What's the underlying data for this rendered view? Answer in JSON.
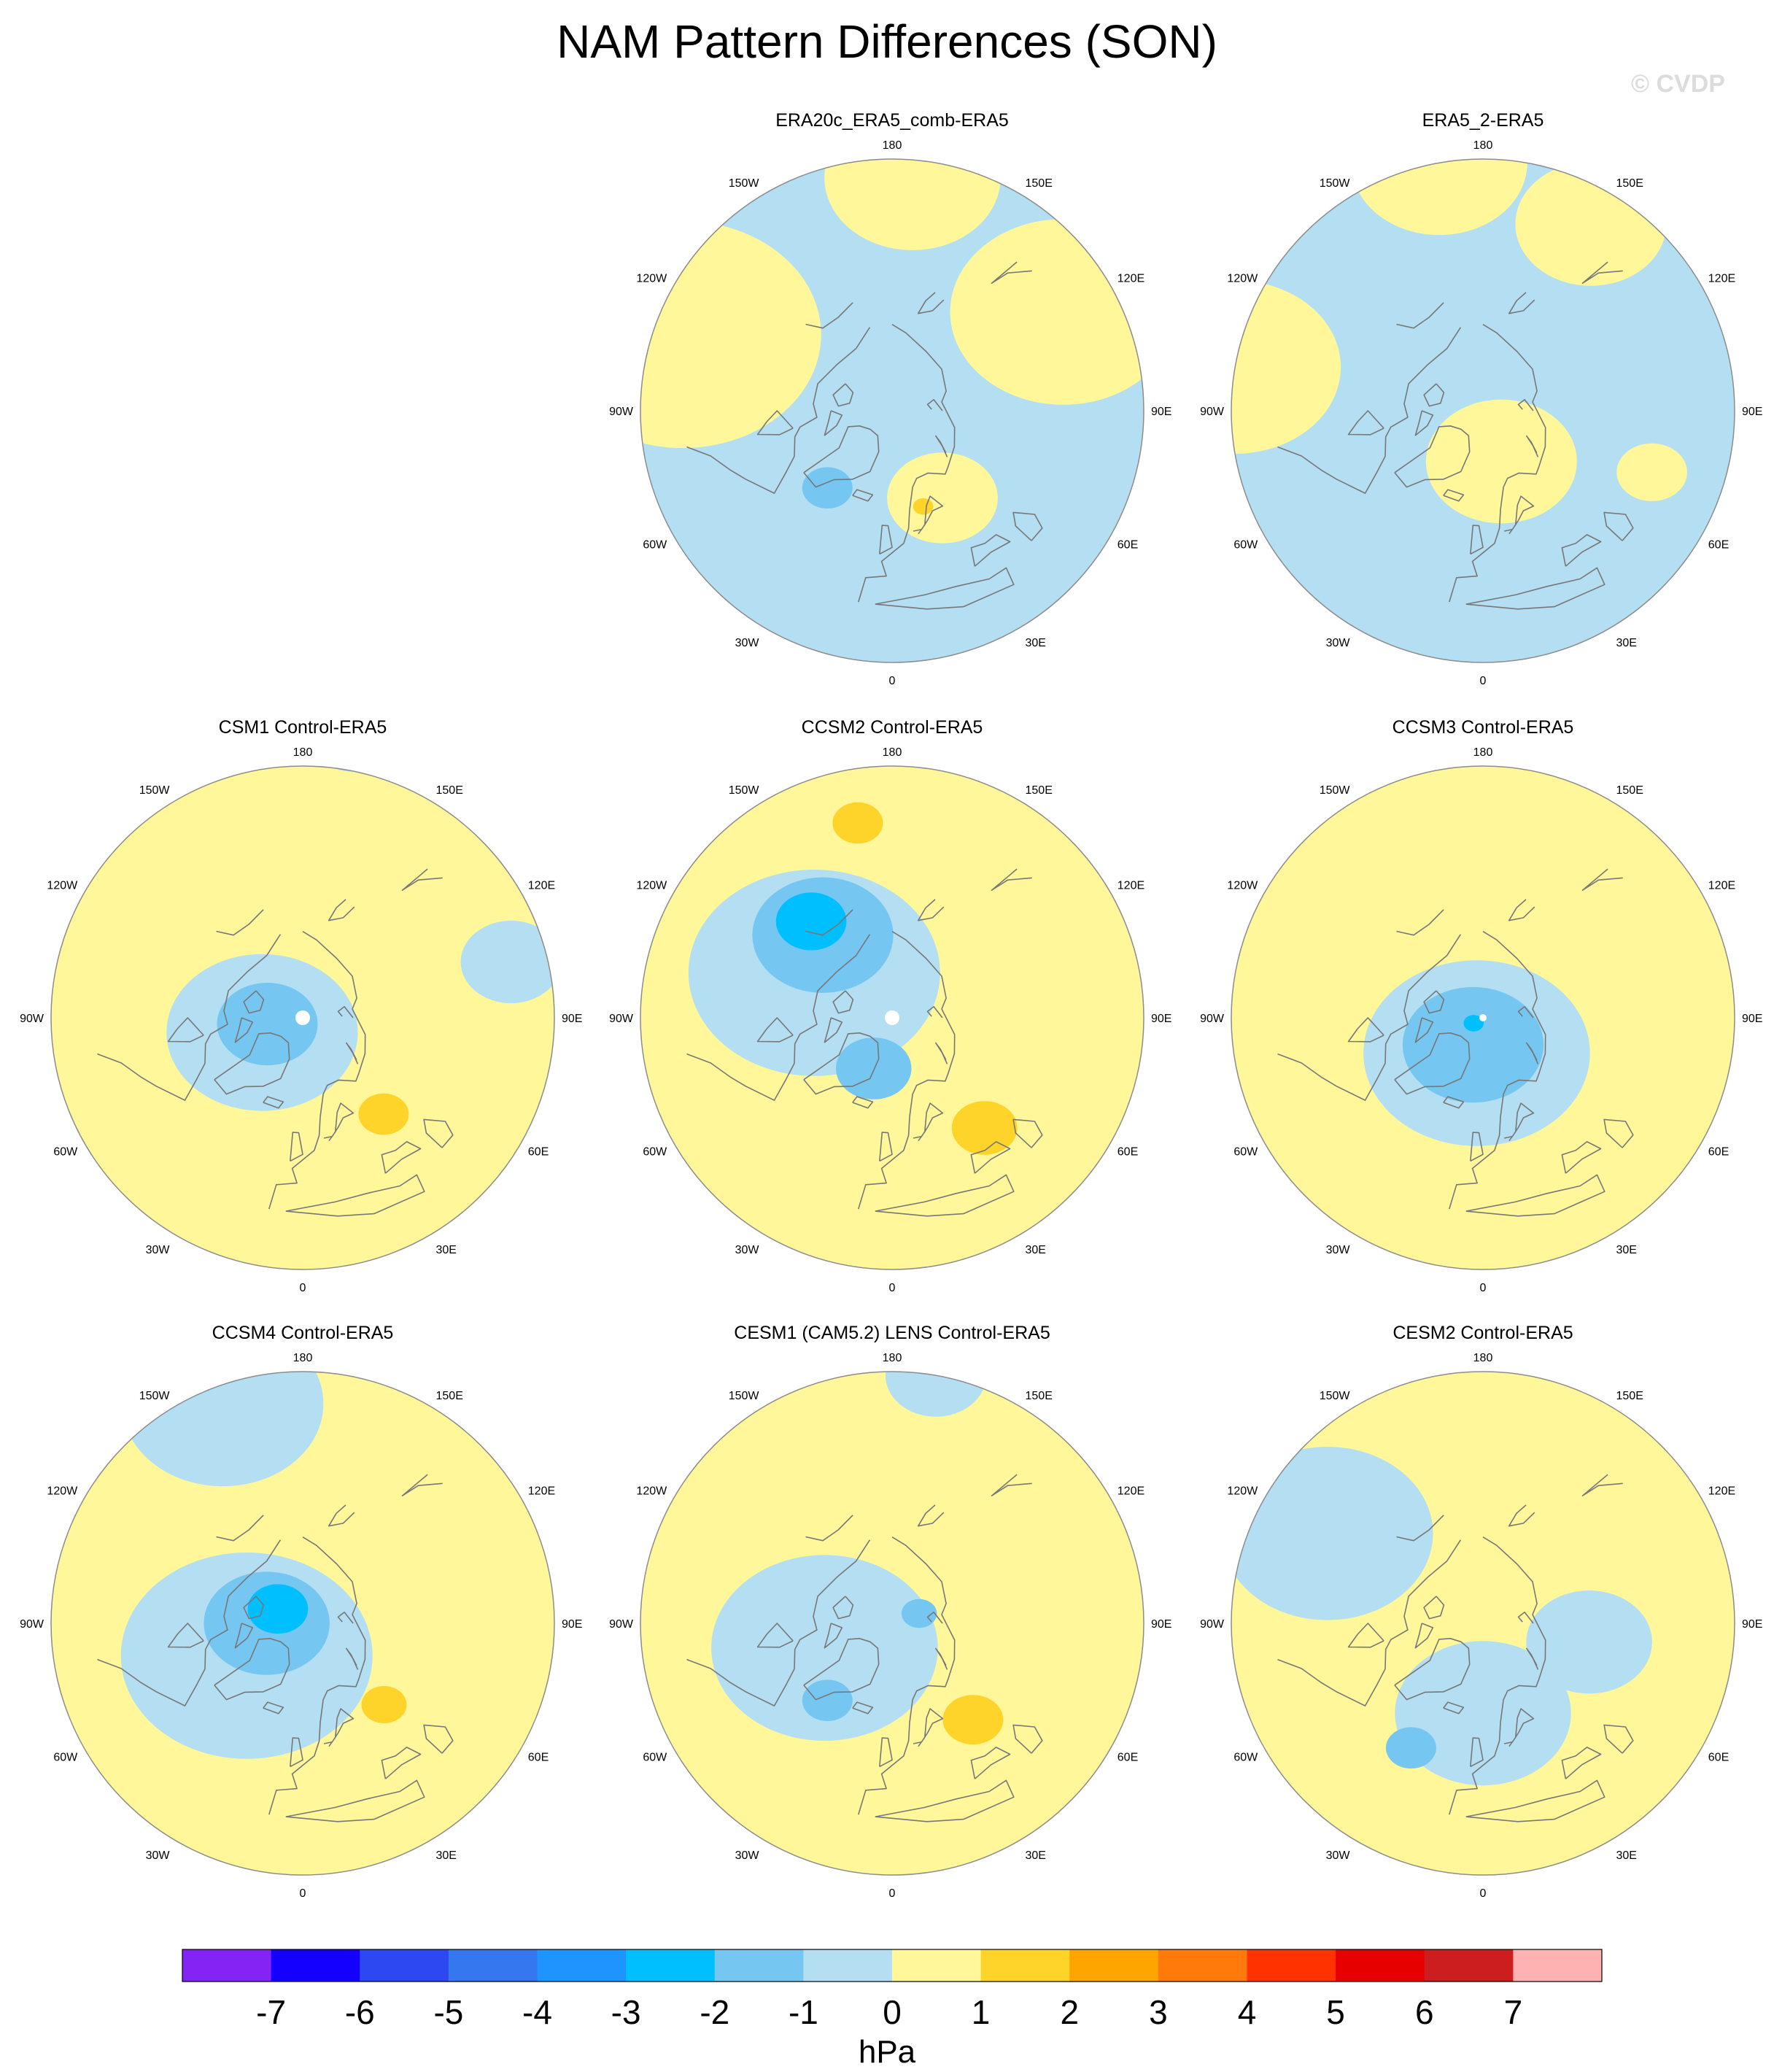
{
  "title": "NAM Pattern Differences (SON)",
  "watermark": "© CVDP",
  "colors": {
    "ocean_land_neutral": "#fff79a",
    "neg1": "#b4def2",
    "neg2": "#75c7f1",
    "neg3": "#00bfff",
    "pos1": "#ffd42a",
    "coast": "#777777",
    "missing": "#ffffff"
  },
  "map_labels": {
    "top": "180",
    "bottom": "0",
    "left": "90W",
    "right": "90E",
    "upper_left": "150W",
    "upper_right": "150E",
    "mid_upper_left": "120W",
    "mid_upper_right": "120E",
    "mid_lower_left": "60W",
    "mid_lower_right": "60E",
    "lower_left": "30W",
    "lower_right": "30E"
  },
  "panels": [
    {
      "title": "ERA20c_ERA5_comb-ERA5",
      "background": "neg1",
      "blobs": [
        {
          "level": "zero",
          "lon": -110,
          "lat": 28,
          "r": 0.55
        },
        {
          "level": "zero",
          "lon": 120,
          "lat": 35,
          "r": 0.45
        },
        {
          "level": "zero",
          "lon": 30,
          "lat": 62,
          "r": 0.22
        },
        {
          "level": "zero",
          "lon": 175,
          "lat": 25,
          "r": 0.35
        },
        {
          "level": "neg2",
          "lon": -40,
          "lat": 62,
          "r": 0.1
        },
        {
          "level": "pos1",
          "lon": 18,
          "lat": 62,
          "r": 0.04
        }
      ]
    },
    {
      "title": "ERA5_2-ERA5",
      "background": "neg1",
      "blobs": [
        {
          "level": "zero",
          "lon": -170,
          "lat": 20,
          "r": 0.35
        },
        {
          "level": "zero",
          "lon": -100,
          "lat": 20,
          "r": 0.42
        },
        {
          "level": "zero",
          "lon": 20,
          "lat": 75,
          "r": 0.3
        },
        {
          "level": "zero",
          "lon": 150,
          "lat": 30,
          "r": 0.3
        },
        {
          "level": "zero",
          "lon": 70,
          "lat": 40,
          "r": 0.14
        }
      ]
    },
    {
      "title": "CSM1 Control-ERA5",
      "background": "zero",
      "blobs": [
        {
          "level": "neg1",
          "lon": -70,
          "lat": 78,
          "r": 0.38
        },
        {
          "level": "neg1",
          "lon": 105,
          "lat": 30,
          "r": 0.2
        },
        {
          "level": "neg1",
          "lon": 170,
          "lat": 10,
          "r": 0.18
        },
        {
          "level": "neg2",
          "lon": -80,
          "lat": 80,
          "r": 0.2
        },
        {
          "level": "pos1",
          "lon": 40,
          "lat": 55,
          "r": 0.1
        }
      ]
    },
    {
      "title": "CCSM2 Control-ERA5",
      "background": "zero",
      "blobs": [
        {
          "level": "neg1",
          "lon": -120,
          "lat": 65,
          "r": 0.5
        },
        {
          "level": "neg2",
          "lon": -140,
          "lat": 60,
          "r": 0.28
        },
        {
          "level": "neg3",
          "lon": -140,
          "lat": 55,
          "r": 0.14
        },
        {
          "level": "neg2",
          "lon": -20,
          "lat": 75,
          "r": 0.15
        },
        {
          "level": "pos1",
          "lon": 40,
          "lat": 50,
          "r": 0.13
        },
        {
          "level": "pos1",
          "lon": -170,
          "lat": 35,
          "r": 0.1
        }
      ]
    },
    {
      "title": "CCSM3 Control-ERA5",
      "background": "zero",
      "blobs": [
        {
          "level": "neg1",
          "lon": -10,
          "lat": 80,
          "r": 0.45
        },
        {
          "level": "neg2",
          "lon": -20,
          "lat": 82,
          "r": 0.28
        },
        {
          "level": "neg3",
          "lon": -60,
          "lat": 87,
          "r": 0.04
        }
      ]
    },
    {
      "title": "CCSM4 Control-ERA5",
      "background": "zero",
      "blobs": [
        {
          "level": "neg1",
          "lon": -60,
          "lat": 72,
          "r": 0.5
        },
        {
          "level": "neg1",
          "lon": -160,
          "lat": 25,
          "r": 0.4
        },
        {
          "level": "neg2",
          "lon": -90,
          "lat": 80,
          "r": 0.25
        },
        {
          "level": "neg3",
          "lon": -120,
          "lat": 82,
          "r": 0.12
        },
        {
          "level": "pos1",
          "lon": 45,
          "lat": 58,
          "r": 0.09
        }
      ]
    },
    {
      "title": "CESM1 (CAM5.2) LENS Control-ERA5",
      "background": "zero",
      "blobs": [
        {
          "level": "neg1",
          "lon": -70,
          "lat": 70,
          "r": 0.45
        },
        {
          "level": "neg1",
          "lon": 170,
          "lat": 20,
          "r": 0.2
        },
        {
          "level": "neg2",
          "lon": -40,
          "lat": 62,
          "r": 0.1
        },
        {
          "level": "neg2",
          "lon": 110,
          "lat": 82,
          "r": 0.07
        },
        {
          "level": "pos1",
          "lon": 40,
          "lat": 55,
          "r": 0.12
        }
      ]
    },
    {
      "title": "CESM2 Control-ERA5",
      "background": "zero",
      "blobs": [
        {
          "level": "neg1",
          "lon": -120,
          "lat": 40,
          "r": 0.42
        },
        {
          "level": "neg1",
          "lon": 0,
          "lat": 65,
          "r": 0.35
        },
        {
          "level": "neg1",
          "lon": 80,
          "lat": 60,
          "r": 0.25
        },
        {
          "level": "neg2",
          "lon": -30,
          "lat": 50,
          "r": 0.1
        }
      ]
    }
  ],
  "colorbar": {
    "units": "hPa",
    "colors": [
      "#8324f4",
      "#1400ff",
      "#2d48f0",
      "#3477ee",
      "#1e94ff",
      "#00bfff",
      "#75c7f1",
      "#b4def2",
      "#fff79a",
      "#ffd42a",
      "#ffa500",
      "#ff7a0a",
      "#ff3200",
      "#e60000",
      "#cc1e1e",
      "#ffb2b2"
    ],
    "ticks": [
      "-7",
      "-6",
      "-5",
      "-4",
      "-3",
      "-2",
      "-1",
      "0",
      "1",
      "2",
      "3",
      "4",
      "5",
      "6",
      "7"
    ]
  }
}
